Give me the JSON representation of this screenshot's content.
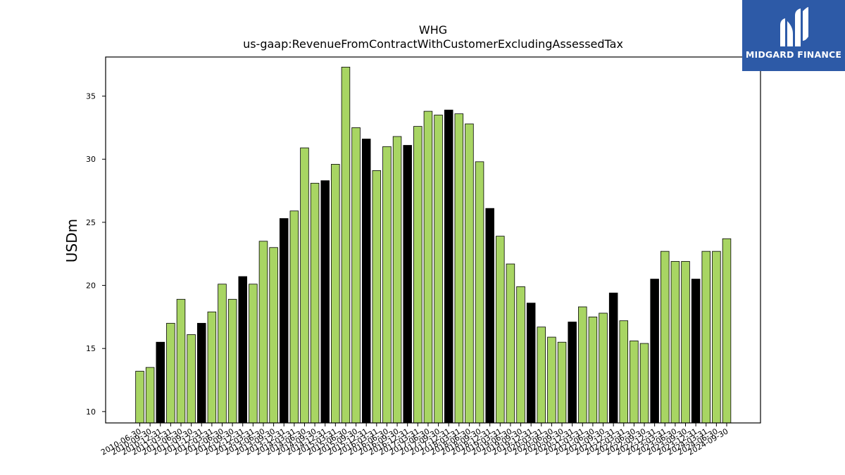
{
  "chart_data": {
    "type": "bar",
    "title": "WHG",
    "subtitle": "us-gaap:RevenueFromContractWithCustomerExcludingAssessedTax",
    "xlabel": "",
    "ylabel": "USDm",
    "ylim": [
      9.1,
      38.1
    ],
    "yticks": [
      10,
      15,
      20,
      25,
      30,
      35
    ],
    "grid": false,
    "colors": {
      "quarter": "#a8d563",
      "fiscal_year_end": "#000000"
    },
    "categories": [
      "2010-06-30",
      "2010-09-30",
      "2010-12-31",
      "2011-03-31",
      "2011-06-30",
      "2011-09-30",
      "2011-12-31",
      "2012-03-31",
      "2012-06-30",
      "2012-09-30",
      "2012-12-31",
      "2013-03-31",
      "2013-06-30",
      "2013-09-30",
      "2013-12-31",
      "2014-03-31",
      "2014-06-30",
      "2014-09-30",
      "2014-12-31",
      "2015-03-31",
      "2015-06-30",
      "2015-09-30",
      "2015-12-31",
      "2016-03-31",
      "2016-06-30",
      "2016-09-30",
      "2016-12-31",
      "2017-03-31",
      "2017-06-30",
      "2017-09-30",
      "2017-12-31",
      "2018-03-31",
      "2018-06-30",
      "2018-09-30",
      "2018-12-31",
      "2019-03-31",
      "2019-06-30",
      "2019-09-30",
      "2019-12-31",
      "2020-03-31",
      "2020-06-30",
      "2020-09-30",
      "2020-12-31",
      "2021-03-31",
      "2021-06-30",
      "2021-09-30",
      "2021-12-31",
      "2022-03-31",
      "2022-06-30",
      "2022-09-30",
      "2022-12-31",
      "2023-03-31",
      "2023-06-30",
      "2023-09-30",
      "2023-12-31",
      "2024-03-31",
      "2024-06-30",
      "2024-09-30"
    ],
    "values": [
      13.2,
      13.5,
      15.5,
      17.0,
      18.9,
      16.1,
      17.0,
      17.9,
      20.1,
      18.9,
      20.7,
      20.1,
      23.5,
      23.0,
      25.3,
      25.9,
      30.9,
      28.1,
      28.3,
      29.6,
      37.3,
      32.5,
      31.6,
      29.1,
      31.0,
      31.8,
      31.1,
      32.6,
      33.8,
      33.5,
      33.9,
      33.6,
      32.8,
      29.8,
      26.1,
      23.9,
      21.7,
      19.9,
      18.6,
      16.7,
      15.9,
      15.5,
      17.1,
      18.3,
      17.5,
      17.8,
      19.4,
      17.2,
      15.6,
      15.4,
      20.5,
      22.7,
      21.9,
      21.9,
      20.5,
      22.7,
      22.7,
      23.7
    ],
    "fiscal_year_end_flags": [
      0,
      0,
      1,
      0,
      0,
      0,
      1,
      0,
      0,
      0,
      1,
      0,
      0,
      0,
      1,
      0,
      0,
      0,
      1,
      0,
      0,
      0,
      1,
      0,
      0,
      0,
      1,
      0,
      0,
      0,
      1,
      0,
      0,
      0,
      1,
      0,
      0,
      0,
      1,
      0,
      0,
      0,
      1,
      0,
      0,
      0,
      1,
      0,
      0,
      0,
      1,
      0,
      0,
      0,
      1,
      0,
      0,
      0
    ]
  },
  "brand": {
    "name": "MIDGARD FINANCE",
    "icon": "midgard-logo-icon",
    "background": "#2d5aa7"
  }
}
